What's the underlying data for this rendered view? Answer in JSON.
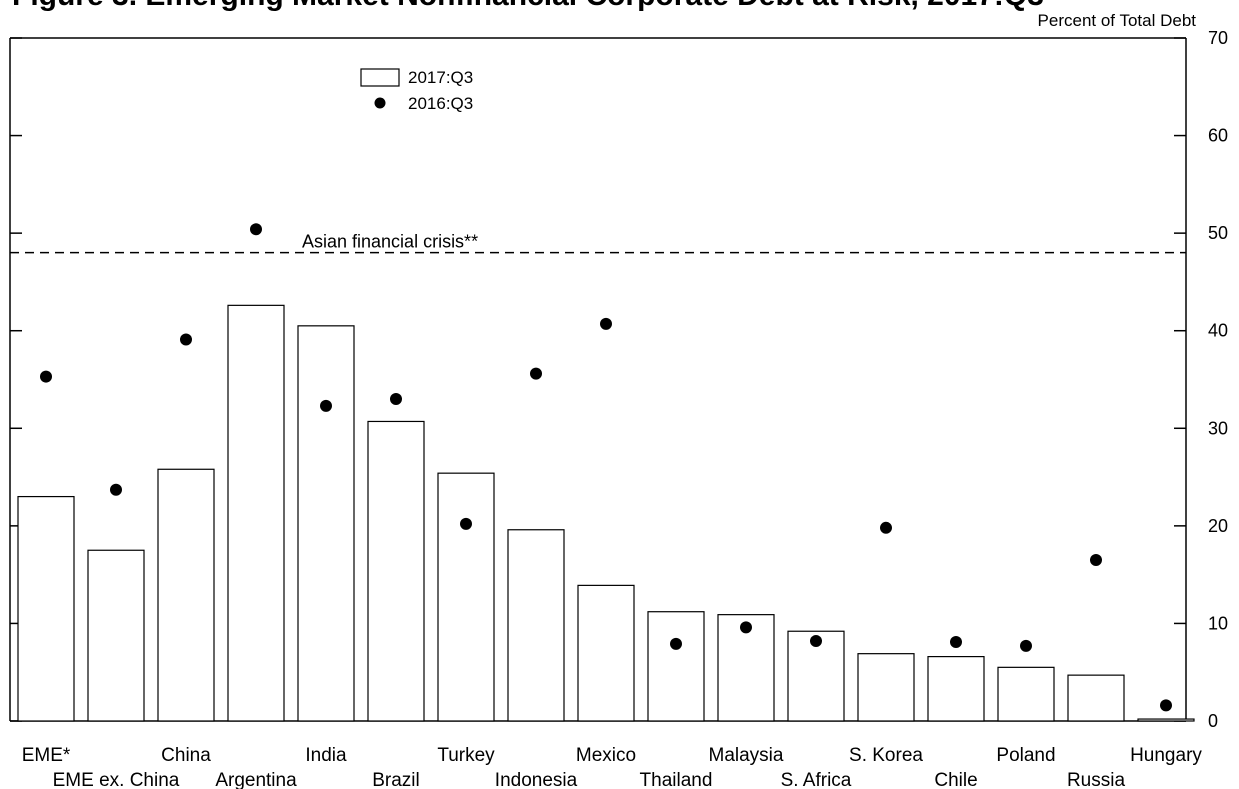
{
  "chart_data": {
    "type": "bar",
    "title": "Figure 3. Emerging Market Nonfinancial Corporate Debt at Risk, 2017:Q3",
    "ylabel": "Percent of Total Debt",
    "ylim": [
      0,
      70
    ],
    "yticks": [
      0,
      10,
      20,
      30,
      40,
      50,
      60,
      70
    ],
    "categories": [
      "EME*",
      "EME ex. China",
      "China",
      "Argentina",
      "India",
      "Brazil",
      "Turkey",
      "Indonesia",
      "Mexico",
      "Thailand",
      "Malaysia",
      "S. Africa",
      "S. Korea",
      "Chile",
      "Poland",
      "Russia",
      "Hungary"
    ],
    "series": [
      {
        "name": "2017:Q3",
        "type": "bar",
        "values": [
          23.0,
          17.5,
          25.8,
          42.6,
          40.5,
          30.7,
          25.4,
          19.6,
          13.9,
          11.2,
          10.9,
          9.2,
          6.9,
          6.6,
          5.5,
          4.7,
          0.2
        ]
      },
      {
        "name": "2016:Q3",
        "type": "scatter",
        "values": [
          35.3,
          23.7,
          39.1,
          50.4,
          32.3,
          33.0,
          20.2,
          35.6,
          40.7,
          7.9,
          9.6,
          8.2,
          19.8,
          8.1,
          7.7,
          16.5,
          1.6
        ]
      }
    ],
    "reference_line": {
      "label": "Asian financial crisis**",
      "value": 48
    },
    "legend_position": "top-left",
    "grid": false
  }
}
